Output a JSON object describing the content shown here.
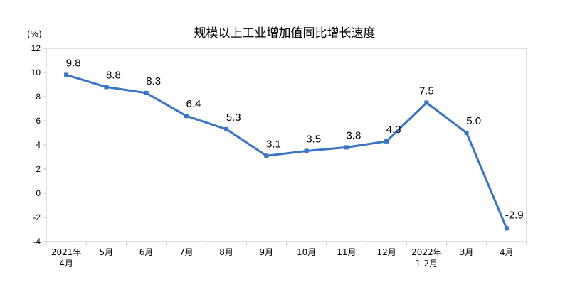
{
  "chart_data": {
    "type": "line",
    "title": "规模以上工业增加值同比增长速度",
    "unit_label": "(%)",
    "categories": [
      [
        "2021年",
        "4月"
      ],
      [
        "5月"
      ],
      [
        "6月"
      ],
      [
        "7月"
      ],
      [
        "8月"
      ],
      [
        "9月"
      ],
      [
        "10月"
      ],
      [
        "11月"
      ],
      [
        "12月"
      ],
      [
        "2022年",
        "1-2月"
      ],
      [
        "3月"
      ],
      [
        "4月"
      ]
    ],
    "series": [
      {
        "values": [
          9.8,
          8.8,
          8.3,
          6.4,
          5.3,
          3.1,
          3.5,
          3.8,
          4.3,
          7.5,
          5.0,
          -2.9
        ],
        "labels": [
          "9.8",
          "8.8",
          "8.3",
          "6.4",
          "5.3",
          "3.1",
          "3.5",
          "3.8",
          "4.3",
          "7.5",
          "5.0",
          "-2.9"
        ],
        "color": "#3a74c4"
      }
    ],
    "ylim": [
      -4,
      12
    ],
    "yticks": [
      -4,
      -2,
      0,
      2,
      4,
      6,
      8,
      10,
      12
    ],
    "ytick_labels": [
      "-4",
      "-2",
      "0",
      "2",
      "4",
      "6",
      "8",
      "10",
      "12"
    ],
    "grid": false,
    "legend": "none"
  }
}
